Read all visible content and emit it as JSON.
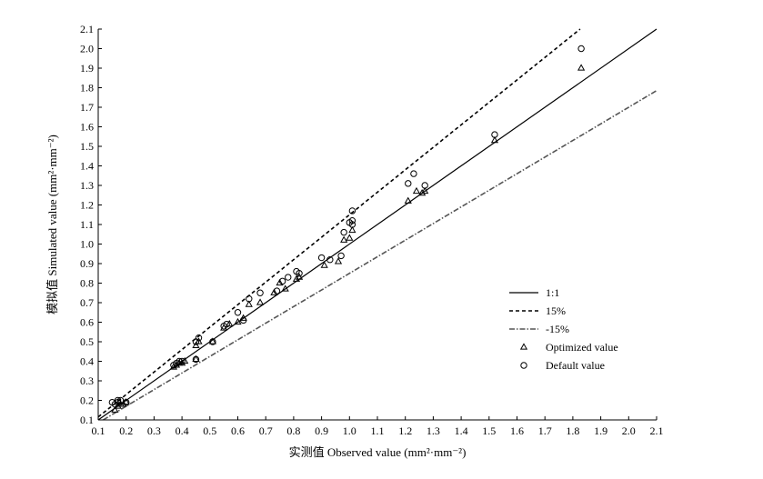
{
  "chart_data": {
    "type": "scatter",
    "xlabel": "实测值 Observed value (mm²·mm⁻²)",
    "ylabel": "模拟值 Simulated value (mm²·mm⁻²)",
    "xlim": [
      0.1,
      2.1
    ],
    "ylim": [
      0.1,
      2.1
    ],
    "x_ticks": [
      "0.1",
      "0.2",
      "0.3",
      "0.4",
      "0.5",
      "0.6",
      "0.7",
      "0.8",
      "0.9",
      "1.0",
      "1.1",
      "1.2",
      "1.3",
      "1.4",
      "1.5",
      "1.6",
      "1.7",
      "1.8",
      "1.9",
      "2.0",
      "2.1"
    ],
    "y_ticks": [
      "0.1",
      "0.2",
      "0.3",
      "0.4",
      "0.5",
      "0.6",
      "0.7",
      "0.8",
      "0.9",
      "1.0",
      "1.1",
      "1.2",
      "1.3",
      "1.4",
      "1.5",
      "1.6",
      "1.7",
      "1.8",
      "1.9",
      "2.0",
      "2.1"
    ],
    "grid": false,
    "legend_position": "right",
    "lines": [
      {
        "name": "1:1",
        "slope": 1.0,
        "style": "solid",
        "color": "#000000"
      },
      {
        "name": "15%",
        "slope": 1.15,
        "style": "dashed",
        "color": "#000000"
      },
      {
        "name": "-15%",
        "slope": 0.85,
        "style": "dashdot",
        "color": "#555555"
      }
    ],
    "series": [
      {
        "name": "Optimized value",
        "marker": "triangle",
        "points": [
          [
            0.16,
            0.15
          ],
          [
            0.17,
            0.17
          ],
          [
            0.18,
            0.18
          ],
          [
            0.19,
            0.18
          ],
          [
            0.2,
            0.19
          ],
          [
            0.37,
            0.37
          ],
          [
            0.38,
            0.38
          ],
          [
            0.39,
            0.39
          ],
          [
            0.4,
            0.39
          ],
          [
            0.41,
            0.4
          ],
          [
            0.45,
            0.41
          ],
          [
            0.45,
            0.48
          ],
          [
            0.46,
            0.5
          ],
          [
            0.51,
            0.5
          ],
          [
            0.55,
            0.57
          ],
          [
            0.57,
            0.59
          ],
          [
            0.6,
            0.6
          ],
          [
            0.62,
            0.62
          ],
          [
            0.64,
            0.69
          ],
          [
            0.68,
            0.7
          ],
          [
            0.73,
            0.75
          ],
          [
            0.75,
            0.8
          ],
          [
            0.77,
            0.77
          ],
          [
            0.81,
            0.82
          ],
          [
            0.82,
            0.83
          ],
          [
            0.91,
            0.89
          ],
          [
            0.96,
            0.91
          ],
          [
            0.98,
            1.02
          ],
          [
            1.0,
            1.03
          ],
          [
            1.01,
            1.07
          ],
          [
            1.21,
            1.22
          ],
          [
            1.24,
            1.27
          ],
          [
            1.26,
            1.26
          ],
          [
            1.27,
            1.27
          ],
          [
            1.52,
            1.53
          ],
          [
            1.83,
            1.9
          ]
        ]
      },
      {
        "name": "Default value",
        "marker": "circle",
        "points": [
          [
            0.15,
            0.19
          ],
          [
            0.16,
            0.18
          ],
          [
            0.17,
            0.2
          ],
          [
            0.17,
            0.19
          ],
          [
            0.18,
            0.2
          ],
          [
            0.2,
            0.19
          ],
          [
            0.37,
            0.38
          ],
          [
            0.38,
            0.39
          ],
          [
            0.39,
            0.4
          ],
          [
            0.4,
            0.4
          ],
          [
            0.45,
            0.41
          ],
          [
            0.45,
            0.5
          ],
          [
            0.46,
            0.52
          ],
          [
            0.51,
            0.5
          ],
          [
            0.55,
            0.58
          ],
          [
            0.56,
            0.59
          ],
          [
            0.6,
            0.65
          ],
          [
            0.62,
            0.61
          ],
          [
            0.64,
            0.72
          ],
          [
            0.68,
            0.75
          ],
          [
            0.74,
            0.76
          ],
          [
            0.76,
            0.81
          ],
          [
            0.78,
            0.83
          ],
          [
            0.81,
            0.86
          ],
          [
            0.82,
            0.85
          ],
          [
            0.9,
            0.93
          ],
          [
            0.93,
            0.92
          ],
          [
            0.97,
            0.94
          ],
          [
            0.98,
            1.06
          ],
          [
            1.0,
            1.11
          ],
          [
            1.01,
            1.1
          ],
          [
            1.01,
            1.12
          ],
          [
            1.01,
            1.17
          ],
          [
            1.21,
            1.31
          ],
          [
            1.23,
            1.36
          ],
          [
            1.27,
            1.3
          ],
          [
            1.52,
            1.56
          ],
          [
            1.83,
            2.0
          ]
        ]
      }
    ]
  }
}
